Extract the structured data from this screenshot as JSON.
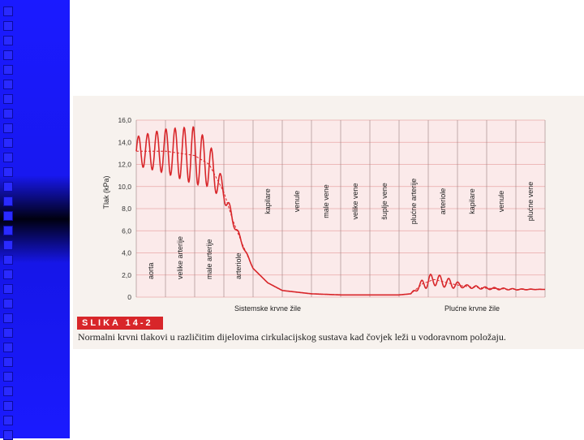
{
  "figure": {
    "label": "SLIKA 14-2",
    "caption": "Normalni krvni tlakovi u različitim dijelovima cirkulacijskog sustava kad čovjek leži u vodoravnom položaju."
  },
  "colors": {
    "line": "#d8262a",
    "grid": "#e9a8a8",
    "plot_bg": "#fbeaea",
    "sidebar": "#1a1aff"
  },
  "chart_data": {
    "type": "line",
    "ylabel": "Tlak (kPa)",
    "ylim": [
      0,
      16
    ],
    "yticks": [
      "16,0",
      "14,0",
      "12,0",
      "10,0",
      "8,0",
      "6,0",
      "4,0",
      "2,0",
      "0"
    ],
    "segments": [
      "aorta",
      "velike arterije",
      "male arterije",
      "arteriole",
      "kapilare",
      "venule",
      "male vene",
      "velike vene",
      "šuplje vene",
      "plućne arterije",
      "arteriole",
      "kapilare",
      "venule",
      "plućne vene"
    ],
    "group_labels": [
      "Sistemske krvne žile",
      "Plućne krvne žile"
    ],
    "mean_pressure": {
      "x": [
        0,
        1,
        2,
        2.5,
        3,
        3.3,
        3.6,
        4,
        4.5,
        5,
        6,
        7,
        8,
        9,
        9.4,
        9.8,
        10.2,
        10.8,
        11.2,
        12,
        13,
        14
      ],
      "y": [
        13.2,
        13.2,
        12.8,
        12,
        9.5,
        7,
        5,
        2.6,
        1.3,
        0.6,
        0.3,
        0.2,
        0.2,
        0.2,
        0.3,
        1.2,
        1.6,
        1.2,
        1.0,
        0.8,
        0.7,
        0.7
      ]
    },
    "pulse_pressure": {
      "x": [
        0,
        1,
        2,
        2.5,
        3,
        3.3,
        3.6,
        4,
        9,
        9.4,
        10,
        10.8,
        11.2,
        14
      ],
      "amplitude": [
        1.3,
        2.0,
        2.6,
        2.0,
        0.8,
        0.4,
        0.2,
        0,
        0,
        0,
        0.6,
        0.4,
        0.15,
        0
      ]
    }
  }
}
